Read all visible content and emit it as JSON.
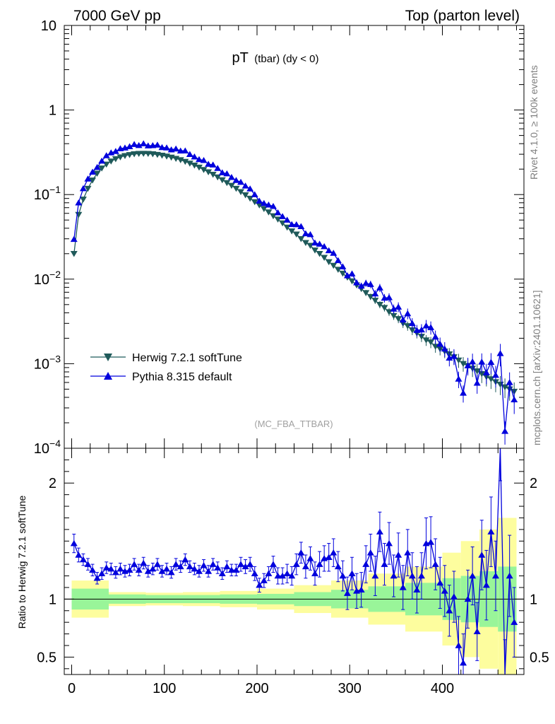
{
  "chart_data": {
    "type": "line",
    "header_left": "7000 GeV pp",
    "header_right": "Top (parton level)",
    "title_main": "pT",
    "title_sub": "(tbar) (dy < 0)",
    "watermark": "(MC_FBA_TTBAR)",
    "side_top": "Rivet 4.1.0, ≥ 100k events",
    "side_bottom": "mcplots.cern.ch [arXiv:2401.10621]",
    "ylabel_ratio": "Ratio to Herwig 7.2.1 softTune",
    "xlim": [
      -8,
      488
    ],
    "ylim_main": [
      0.0001,
      10
    ],
    "ylim_ratio": [
      0.35,
      2.3
    ],
    "x_ticks": [
      "0",
      "100",
      "200",
      "300",
      "400"
    ],
    "y_ticks_main": [
      {
        "base": "10",
        "exp": ""
      },
      {
        "base": "1",
        "exp": ""
      },
      {
        "base": "10",
        "exp": "−1"
      },
      {
        "base": "10",
        "exp": "−2"
      },
      {
        "base": "10",
        "exp": "−3"
      },
      {
        "base": "10",
        "exp": "−4"
      }
    ],
    "y_ticks_ratio": [
      "0.5",
      "1",
      "2"
    ],
    "colors": {
      "herwig": "#1f5a5a",
      "pythia": "#0000dd",
      "band_green": "#99f599",
      "band_yellow": "#fdfd9e"
    },
    "series": [
      {
        "name": "Herwig 7.2.1 softTune",
        "marker": "triangle-down",
        "x": [
          2.5,
          7.5,
          12.5,
          17.5,
          22.5,
          27.5,
          32.5,
          37.5,
          42.5,
          47.5,
          52.5,
          57.5,
          62.5,
          67.5,
          72.5,
          77.5,
          82.5,
          87.5,
          92.5,
          97.5,
          102.5,
          107.5,
          112.5,
          117.5,
          122.5,
          127.5,
          132.5,
          137.5,
          142.5,
          147.5,
          152.5,
          157.5,
          162.5,
          167.5,
          172.5,
          177.5,
          182.5,
          187.5,
          192.5,
          197.5,
          202.5,
          207.5,
          212.5,
          217.5,
          222.5,
          227.5,
          232.5,
          237.5,
          242.5,
          247.5,
          252.5,
          257.5,
          262.5,
          267.5,
          272.5,
          277.5,
          282.5,
          287.5,
          292.5,
          297.5,
          302.5,
          307.5,
          312.5,
          317.5,
          322.5,
          327.5,
          332.5,
          337.5,
          342.5,
          347.5,
          352.5,
          357.5,
          362.5,
          367.5,
          372.5,
          377.5,
          382.5,
          387.5,
          392.5,
          397.5,
          402.5,
          407.5,
          412.5,
          417.5,
          422.5,
          427.5,
          432.5,
          437.5,
          442.5,
          447.5,
          452.5,
          457.5,
          462.5,
          467.5,
          472.5,
          477.5
        ],
        "values": [
          0.02,
          0.058,
          0.088,
          0.118,
          0.148,
          0.178,
          0.205,
          0.228,
          0.248,
          0.264,
          0.278,
          0.288,
          0.296,
          0.302,
          0.305,
          0.306,
          0.305,
          0.302,
          0.297,
          0.291,
          0.284,
          0.276,
          0.267,
          0.257,
          0.246,
          0.234,
          0.222,
          0.21,
          0.197,
          0.185,
          0.173,
          0.161,
          0.149,
          0.138,
          0.128,
          0.118,
          0.108,
          0.099,
          0.09,
          0.082,
          0.075,
          0.068,
          0.062,
          0.056,
          0.051,
          0.046,
          0.041,
          0.037,
          0.034,
          0.03,
          0.027,
          0.025,
          0.022,
          0.02,
          0.018,
          0.016,
          0.0145,
          0.013,
          0.0117,
          0.0105,
          0.0095,
          0.0085,
          0.0077,
          0.0069,
          0.0062,
          0.0056,
          0.005,
          0.0046,
          0.0041,
          0.0037,
          0.0034,
          0.003,
          0.0028,
          0.0025,
          0.0023,
          0.0021,
          0.0019,
          0.0018,
          0.0016,
          0.0015,
          0.0014,
          0.0013,
          0.0012,
          0.0011,
          0.001,
          0.00095,
          0.00088,
          0.00082,
          0.00076,
          0.0007,
          0.00066,
          0.00061,
          0.00057,
          0.00053,
          0.0005,
          0.00047
        ]
      },
      {
        "name": "Pythia 8.315 default",
        "marker": "triangle-up",
        "x": [
          2.5,
          7.5,
          12.5,
          17.5,
          22.5,
          27.5,
          32.5,
          37.5,
          42.5,
          47.5,
          52.5,
          57.5,
          62.5,
          67.5,
          72.5,
          77.5,
          82.5,
          87.5,
          92.5,
          97.5,
          102.5,
          107.5,
          112.5,
          117.5,
          122.5,
          127.5,
          132.5,
          137.5,
          142.5,
          147.5,
          152.5,
          157.5,
          162.5,
          167.5,
          172.5,
          177.5,
          182.5,
          187.5,
          192.5,
          197.5,
          202.5,
          207.5,
          212.5,
          217.5,
          222.5,
          227.5,
          232.5,
          237.5,
          242.5,
          247.5,
          252.5,
          257.5,
          262.5,
          267.5,
          272.5,
          277.5,
          282.5,
          287.5,
          292.5,
          297.5,
          302.5,
          307.5,
          312.5,
          317.5,
          322.5,
          327.5,
          332.5,
          337.5,
          342.5,
          347.5,
          352.5,
          357.5,
          362.5,
          367.5,
          372.5,
          377.5,
          382.5,
          387.5,
          392.5,
          397.5,
          402.5,
          407.5,
          412.5,
          417.5,
          422.5,
          427.5,
          432.5,
          437.5,
          442.5,
          447.5,
          452.5,
          457.5,
          462.5,
          467.5,
          472.5,
          477.5
        ],
        "ratio": [
          1.48,
          1.38,
          1.34,
          1.3,
          1.25,
          1.18,
          1.22,
          1.27,
          1.26,
          1.23,
          1.26,
          1.24,
          1.25,
          1.3,
          1.25,
          1.31,
          1.24,
          1.26,
          1.3,
          1.24,
          1.26,
          1.23,
          1.3,
          1.28,
          1.34,
          1.28,
          1.26,
          1.24,
          1.29,
          1.24,
          1.3,
          1.27,
          1.22,
          1.28,
          1.25,
          1.25,
          1.3,
          1.28,
          1.3,
          1.22,
          1.12,
          1.16,
          1.22,
          1.3,
          1.2,
          1.2,
          1.22,
          1.2,
          1.3,
          1.4,
          1.28,
          1.35,
          1.22,
          1.3,
          1.35,
          1.36,
          1.4,
          1.28,
          1.2,
          1.05,
          1.22,
          1.07,
          1.08,
          1.3,
          1.4,
          1.2,
          1.58,
          1.3,
          1.48,
          1.2,
          1.38,
          1.1,
          1.4,
          1.2,
          1.08,
          1.2,
          1.48,
          1.49,
          1.3,
          1.14,
          1.07,
          0.9,
          1.02,
          0.6,
          0.45,
          1.0,
          1.2,
          0.72,
          1.38,
          1.12,
          1.58,
          1.2,
          2.32,
          0.3,
          1.2,
          0.8
        ],
        "ratio_err": [
          0.08,
          0.06,
          0.05,
          0.05,
          0.05,
          0.05,
          0.05,
          0.05,
          0.05,
          0.05,
          0.05,
          0.05,
          0.05,
          0.05,
          0.05,
          0.05,
          0.05,
          0.05,
          0.05,
          0.05,
          0.05,
          0.05,
          0.05,
          0.05,
          0.05,
          0.05,
          0.05,
          0.05,
          0.05,
          0.05,
          0.05,
          0.05,
          0.05,
          0.05,
          0.05,
          0.05,
          0.06,
          0.06,
          0.06,
          0.06,
          0.06,
          0.06,
          0.06,
          0.07,
          0.07,
          0.07,
          0.08,
          0.08,
          0.09,
          0.09,
          0.1,
          0.1,
          0.1,
          0.11,
          0.11,
          0.12,
          0.12,
          0.13,
          0.13,
          0.14,
          0.14,
          0.15,
          0.15,
          0.16,
          0.16,
          0.17,
          0.17,
          0.18,
          0.18,
          0.18,
          0.19,
          0.19,
          0.2,
          0.2,
          0.2,
          0.2,
          0.22,
          0.22,
          0.22,
          0.22,
          0.22,
          0.22,
          0.22,
          0.25,
          0.25,
          0.25,
          0.25,
          0.25,
          0.3,
          0.3,
          0.3,
          0.3,
          0.3,
          0.35,
          0.35,
          0.3
        ]
      }
    ],
    "band": {
      "x_edges": [
        0,
        40,
        80,
        120,
        160,
        200,
        240,
        280,
        320,
        360,
        400,
        420,
        440,
        460,
        480
      ],
      "green_half": [
        0.09,
        0.04,
        0.035,
        0.035,
        0.04,
        0.045,
        0.06,
        0.08,
        0.11,
        0.14,
        0.18,
        0.2,
        0.24,
        0.28
      ],
      "yellow_half": [
        0.16,
        0.06,
        0.055,
        0.06,
        0.07,
        0.09,
        0.12,
        0.16,
        0.22,
        0.28,
        0.4,
        0.5,
        0.6,
        0.7
      ]
    }
  }
}
